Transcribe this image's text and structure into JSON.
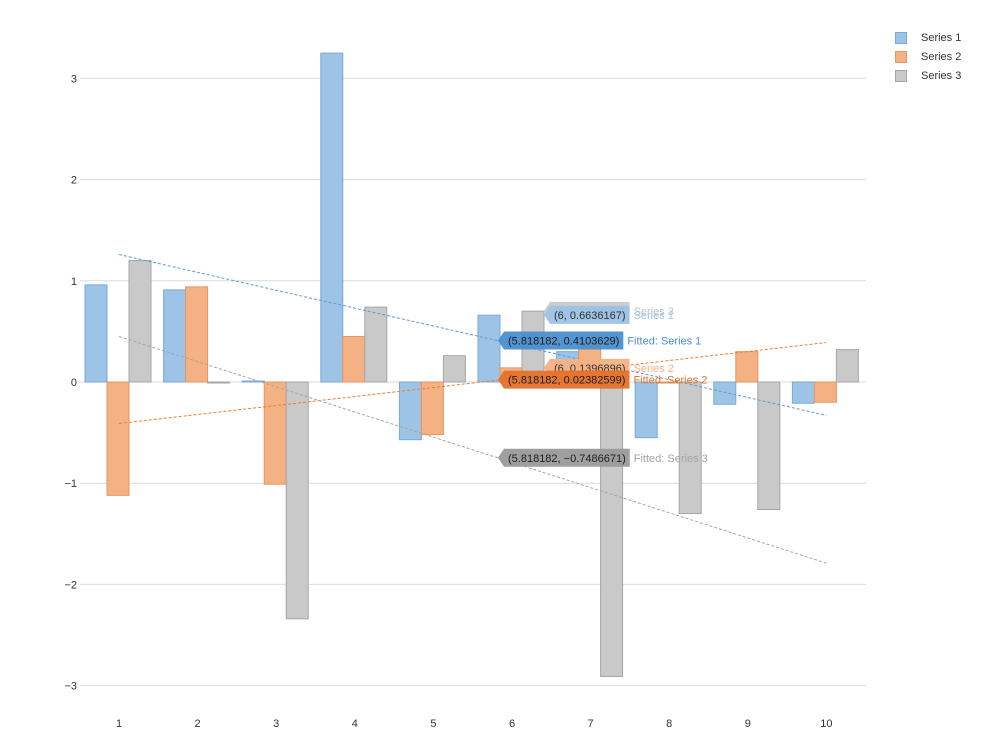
{
  "chart_data": {
    "type": "bar",
    "categories": [
      "1",
      "2",
      "3",
      "4",
      "5",
      "6",
      "7",
      "8",
      "9",
      "10"
    ],
    "series": [
      {
        "name": "Series 1",
        "color": "#9dc3e6",
        "stroke": "#7aaad6",
        "values": [
          0.96,
          0.91,
          0.01,
          3.25,
          -0.57,
          0.66,
          0.3,
          -0.55,
          -0.22,
          -0.21
        ]
      },
      {
        "name": "Series 2",
        "color": "#f4b183",
        "stroke": "#e8955e",
        "values": [
          -1.12,
          0.94,
          -1.01,
          0.45,
          -0.52,
          0.14,
          0.37,
          0.0,
          0.3,
          -0.2
        ]
      },
      {
        "name": "Series 3",
        "color": "#c9c9c9",
        "stroke": "#a6a6a6",
        "values": [
          1.2,
          0.0,
          -2.34,
          0.74,
          0.26,
          0.7,
          -2.91,
          -1.3,
          -1.26,
          0.32
        ]
      }
    ],
    "trendlines": [
      {
        "series": "Series 1",
        "color": "#5b9bd5",
        "y_start": 1.26,
        "y_end": -0.33
      },
      {
        "series": "Series 2",
        "color": "#ed7d31",
        "y_start": -0.41,
        "y_end": 0.39
      },
      {
        "series": "Series 3",
        "color": "#a5a5a5",
        "y_start": 0.45,
        "y_end": -1.79
      }
    ],
    "tooltips": [
      {
        "text": "(6, 0.7030953)",
        "label": "Series 3",
        "y": 0.7030953,
        "bg": "#c9c9c9",
        "fg": "#333333",
        "lc": "#c0c0c0"
      },
      {
        "text": "(6, 0.6636167)",
        "label": "Series 1",
        "y": 0.6636167,
        "bg": "#9dc3e6",
        "fg": "#333333",
        "lc": "#9dc3e6"
      },
      {
        "text": "(5.818182, 0.4103629)",
        "label": "Fitted: Series 1",
        "y": 0.4103629,
        "bg": "#4a8fd0",
        "fg": "#1e1e1e",
        "lc": "#4a8fd0"
      },
      {
        "text": "(6, 0.1396896)",
        "label": "Series 2",
        "y": 0.1396896,
        "bg": "#f4b183",
        "fg": "#333333",
        "lc": "#f4b183"
      },
      {
        "text": "(5.818182, 0.02382599)",
        "label": "Fitted: Series 2",
        "y": 0.02382599,
        "bg": "#e4722a",
        "fg": "#1e1e1e",
        "lc": "#e4722a"
      },
      {
        "text": "(5.818182, −0.7486671)",
        "label": "Fitted: Series 3",
        "y": -0.7486671,
        "bg": "#9a9a9a",
        "fg": "#1e1e1e",
        "lc": "#a5a5a5"
      }
    ],
    "y_ticks": [
      "−3",
      "−2",
      "−1",
      "0",
      "1",
      "2",
      "3"
    ],
    "y_tick_values": [
      -3,
      -2,
      -1,
      0,
      1,
      2,
      3
    ],
    "ylim": [
      -3,
      3.5
    ],
    "grid": true,
    "legend_position": "top-right"
  }
}
